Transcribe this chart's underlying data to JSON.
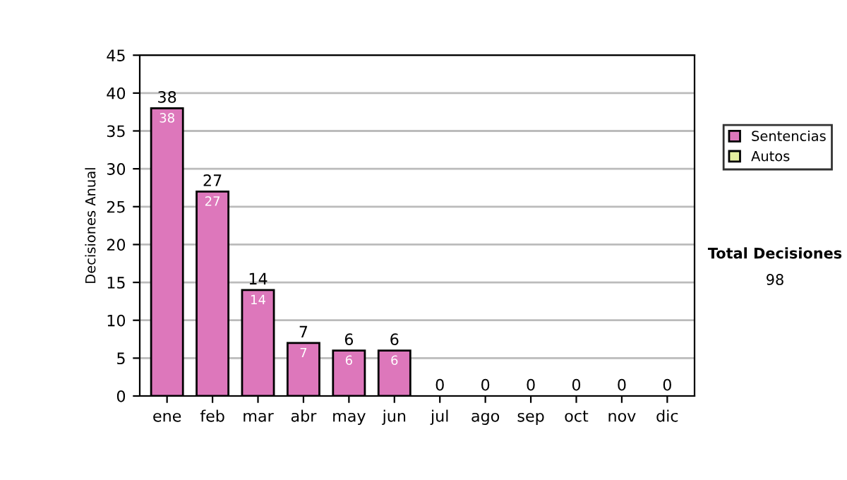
{
  "chart_data": {
    "type": "bar",
    "stacked": true,
    "ylabel": "Decisiones Anual",
    "categories": [
      "ene",
      "feb",
      "mar",
      "abr",
      "may",
      "jun",
      "jul",
      "ago",
      "sep",
      "oct",
      "nov",
      "dic"
    ],
    "series": [
      {
        "name": "Sentencias",
        "color": "#dd77bb",
        "values": [
          38,
          27,
          14,
          7,
          6,
          6,
          0,
          0,
          0,
          0,
          0,
          0
        ],
        "value_labels": [
          "38",
          "27",
          "14",
          "7",
          "6",
          "6",
          null,
          null,
          null,
          null,
          null,
          null
        ]
      },
      {
        "name": "Autos",
        "color": "#e6f0a0",
        "values": [
          0,
          0,
          0,
          0,
          0,
          0,
          0,
          0,
          0,
          0,
          0,
          0
        ]
      }
    ],
    "totals": [
      "38",
      "27",
      "14",
      "7",
      "6",
      "6",
      "0",
      "0",
      "0",
      "0",
      "0",
      "0"
    ],
    "ylim": [
      0,
      45
    ],
    "yticks": [
      0,
      5,
      10,
      15,
      20,
      25,
      30,
      35,
      40,
      45
    ],
    "grid": "y",
    "legend": "right",
    "annotations": [
      "Total Decisiones",
      "98"
    ]
  }
}
